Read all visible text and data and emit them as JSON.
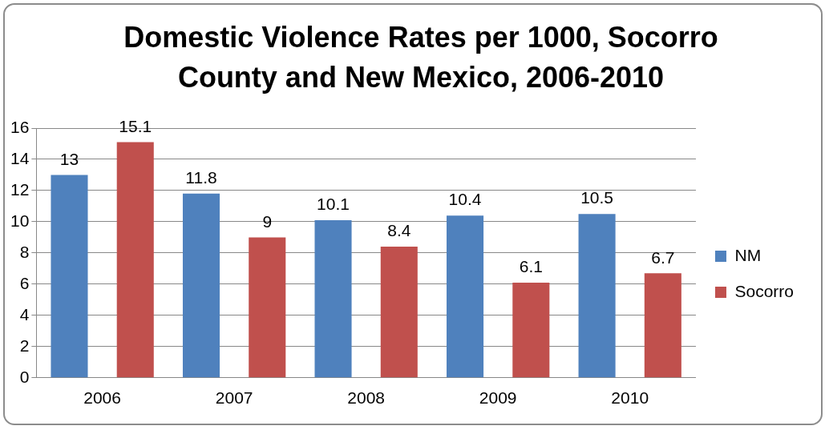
{
  "chart_data": {
    "type": "bar",
    "title": "Domestic Violence Rates per 1000, Socorro County and New Mexico, 2006-2010",
    "categories": [
      "2006",
      "2007",
      "2008",
      "2009",
      "2010"
    ],
    "series": [
      {
        "name": "NM",
        "color": "#4f81bd",
        "values": [
          13,
          11.8,
          10.1,
          10.4,
          10.5
        ]
      },
      {
        "name": "Socorro",
        "color": "#c0504d",
        "values": [
          15.1,
          9,
          8.4,
          6.1,
          6.7
        ]
      }
    ],
    "ylim": [
      0,
      16
    ],
    "yticks": [
      0,
      2,
      4,
      6,
      8,
      10,
      12,
      14,
      16
    ],
    "grid": "y",
    "legend": "right",
    "data_labels": true
  }
}
